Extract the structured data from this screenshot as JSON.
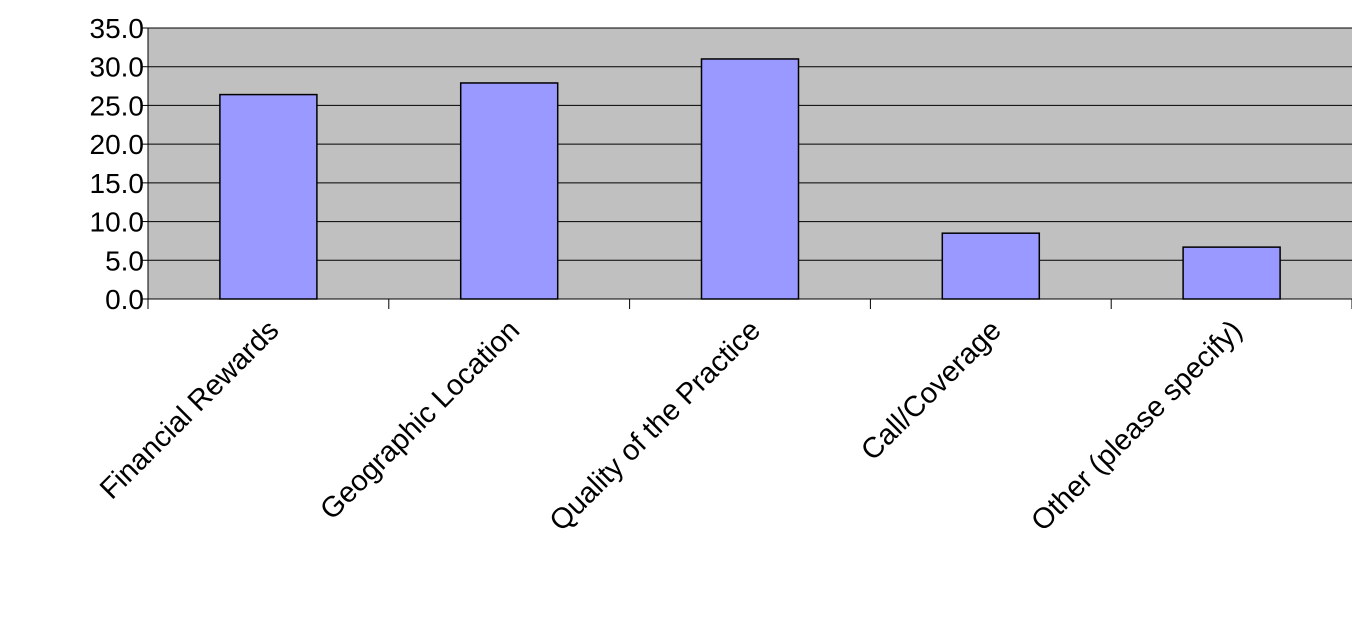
{
  "chart_data": {
    "type": "bar",
    "title": "",
    "xlabel": "",
    "ylabel": "",
    "categories": [
      "Financial Rewards",
      "Geographic Location",
      "Quality of the Practice",
      "Call/Coverage",
      "Other (please specify)"
    ],
    "values": [
      26.4,
      27.9,
      31.0,
      8.5,
      6.7
    ],
    "ylim": [
      0,
      35
    ],
    "ytick_step": 5,
    "ytick_labels": [
      "0.0",
      "5.0",
      "10.0",
      "15.0",
      "20.0",
      "25.0",
      "30.0",
      "35.0"
    ],
    "grid": true,
    "legend": "none",
    "colors": {
      "plot_background": "#c0c0c0",
      "bar_fill": "#9999ff",
      "bar_stroke": "#000000",
      "gridline": "#000000"
    }
  }
}
